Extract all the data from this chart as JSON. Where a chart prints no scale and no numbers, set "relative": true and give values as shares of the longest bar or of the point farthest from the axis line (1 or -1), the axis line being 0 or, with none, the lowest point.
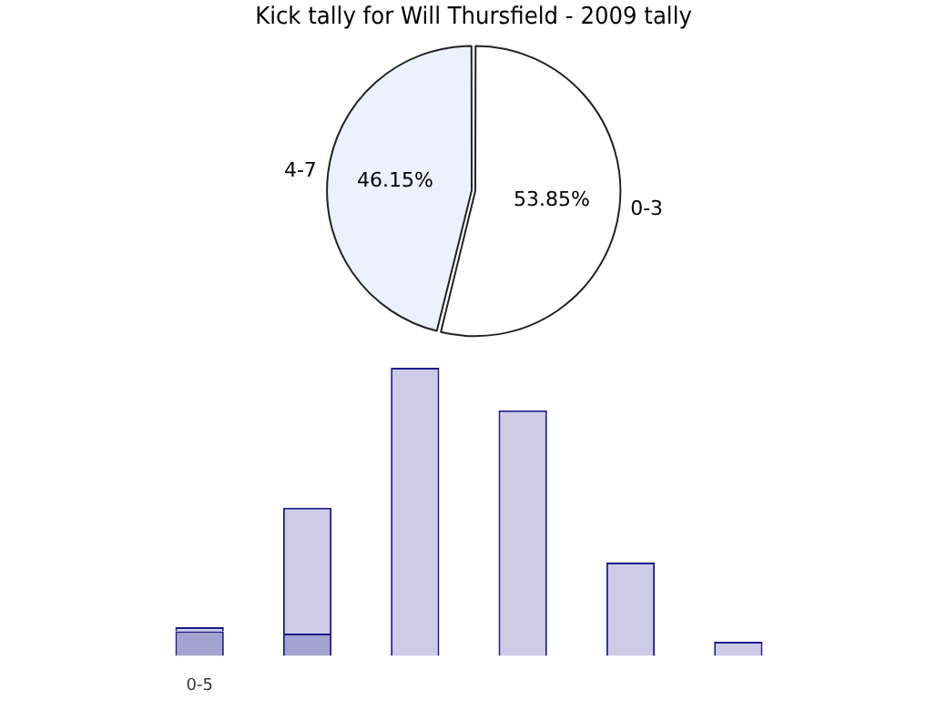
{
  "chart_data": [
    {
      "type": "pie",
      "title": "Kick tally for Will Thursfield - 2009 tally",
      "categories": [
        "0-3",
        "4-7"
      ],
      "values": [
        53.85,
        46.15
      ],
      "colors": [
        "#ffffff",
        "#ebf1fd"
      ],
      "value_labels": [
        "53.85%",
        "46.15%"
      ]
    },
    {
      "type": "bar",
      "relative": true,
      "stacked": true,
      "categories": [
        "0-5",
        null,
        null,
        null,
        null,
        null
      ],
      "series": [
        {
          "color": "#a3a3cf",
          "values": [
            0.085,
            0.077,
            0,
            0,
            0,
            0
          ]
        },
        {
          "color": "#cccce6",
          "values": [
            0.014,
            0.437,
            1,
            0.852,
            0.324,
            0.049
          ]
        }
      ]
    }
  ]
}
